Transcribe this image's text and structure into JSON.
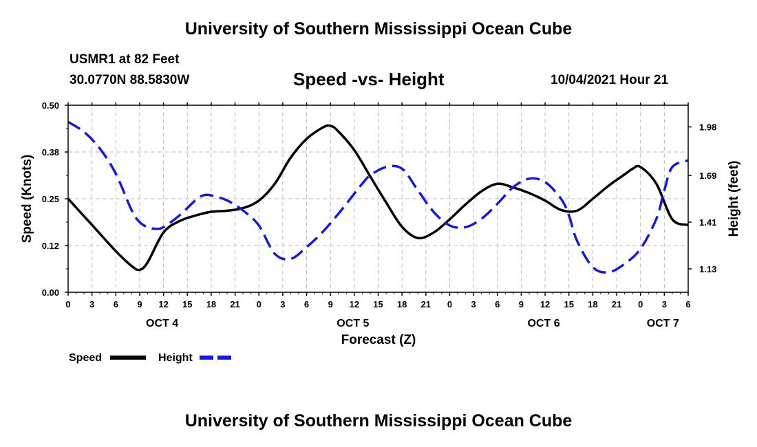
{
  "header": {
    "title": "University of Southern Mississippi Ocean Cube",
    "station": "USMR1 at 82 Feet",
    "coordinates": "30.0770N  88.5830W",
    "chart_title": "Speed -vs- Height",
    "datetime": "10/04/2021 Hour 21"
  },
  "footer": {
    "title": "University of Southern Mississippi Ocean Cube"
  },
  "colors": {
    "speed": "#000000",
    "height": "#1a1acc",
    "grid": "#bdbdbd"
  },
  "chart_data": {
    "type": "line",
    "title": "Speed -vs- Height",
    "xlabel": "Forecast (Z)",
    "ylabel": "Speed (Knots)",
    "y2label": "Height (feet)",
    "x_range_hours": [
      0,
      78
    ],
    "x_ticks": [
      {
        "h": 0,
        "label": "0"
      },
      {
        "h": 3,
        "label": "3"
      },
      {
        "h": 6,
        "label": "6"
      },
      {
        "h": 9,
        "label": "9"
      },
      {
        "h": 12,
        "label": "12"
      },
      {
        "h": 15,
        "label": "15"
      },
      {
        "h": 18,
        "label": "18"
      },
      {
        "h": 21,
        "label": "21"
      },
      {
        "h": 24,
        "label": "0"
      },
      {
        "h": 27,
        "label": "3"
      },
      {
        "h": 30,
        "label": "6"
      },
      {
        "h": 33,
        "label": "9"
      },
      {
        "h": 36,
        "label": "12"
      },
      {
        "h": 39,
        "label": "15"
      },
      {
        "h": 42,
        "label": "18"
      },
      {
        "h": 45,
        "label": "21"
      },
      {
        "h": 48,
        "label": "0"
      },
      {
        "h": 51,
        "label": "3"
      },
      {
        "h": 54,
        "label": "6"
      },
      {
        "h": 57,
        "label": "9"
      },
      {
        "h": 60,
        "label": "12"
      },
      {
        "h": 63,
        "label": "15"
      },
      {
        "h": 66,
        "label": "18"
      },
      {
        "h": 69,
        "label": "21"
      },
      {
        "h": 72,
        "label": "0"
      },
      {
        "h": 75,
        "label": "3"
      },
      {
        "h": 78,
        "label": "6"
      }
    ],
    "day_labels": [
      {
        "h": 12,
        "label": "OCT 4"
      },
      {
        "h": 36,
        "label": "OCT 5"
      },
      {
        "h": 60,
        "label": "OCT 6"
      },
      {
        "h": 75,
        "label": "OCT 7"
      }
    ],
    "ylim": [
      0,
      0.5
    ],
    "y_ticks": [
      {
        "v": 0.0,
        "label": "0.00"
      },
      {
        "v": 0.125,
        "label": "0.12"
      },
      {
        "v": 0.25,
        "label": "0.25"
      },
      {
        "v": 0.375,
        "label": "0.38"
      },
      {
        "v": 0.5,
        "label": "0.50"
      }
    ],
    "y2lim": [
      0.99,
      2.11
    ],
    "y2_ticks": [
      {
        "v": 1.13,
        "label": "1.13"
      },
      {
        "v": 1.41,
        "label": "1.41"
      },
      {
        "v": 1.69,
        "label": "1.69"
      },
      {
        "v": 1.98,
        "label": "1.98"
      }
    ],
    "series": [
      {
        "name": "Speed",
        "axis": "left",
        "style": "solid",
        "x": [
          0,
          3,
          6,
          8,
          9,
          10,
          12,
          14,
          16,
          18,
          20,
          22,
          24,
          26,
          28,
          30,
          32,
          33,
          34,
          36,
          38,
          40,
          42,
          44,
          46,
          48,
          50,
          52,
          54,
          56,
          58,
          60,
          62,
          64,
          66,
          68,
          70,
          71,
          72,
          74,
          76,
          78
        ],
        "values": [
          0.25,
          0.18,
          0.11,
          0.07,
          0.06,
          0.08,
          0.16,
          0.19,
          0.205,
          0.215,
          0.218,
          0.225,
          0.245,
          0.29,
          0.36,
          0.41,
          0.44,
          0.445,
          0.43,
          0.38,
          0.31,
          0.24,
          0.175,
          0.145,
          0.16,
          0.195,
          0.235,
          0.27,
          0.29,
          0.28,
          0.265,
          0.245,
          0.22,
          0.218,
          0.25,
          0.285,
          0.315,
          0.33,
          0.335,
          0.29,
          0.195,
          0.18
        ]
      },
      {
        "name": "Height",
        "axis": "right",
        "style": "dashed",
        "x": [
          0,
          2,
          4,
          6,
          8,
          9,
          10,
          11,
          12,
          14,
          16,
          17,
          18,
          20,
          22,
          24,
          26,
          28,
          30,
          32,
          34,
          36,
          37,
          38,
          40,
          42,
          44,
          46,
          48,
          50,
          52,
          54,
          56,
          58,
          60,
          62,
          63,
          64,
          66,
          68,
          70,
          72,
          74,
          75,
          76,
          78
        ],
        "values": [
          2.01,
          1.95,
          1.85,
          1.7,
          1.48,
          1.41,
          1.38,
          1.37,
          1.38,
          1.45,
          1.54,
          1.57,
          1.57,
          1.54,
          1.48,
          1.39,
          1.22,
          1.19,
          1.26,
          1.35,
          1.46,
          1.58,
          1.64,
          1.69,
          1.74,
          1.73,
          1.6,
          1.47,
          1.39,
          1.38,
          1.43,
          1.52,
          1.62,
          1.67,
          1.65,
          1.55,
          1.45,
          1.3,
          1.14,
          1.11,
          1.16,
          1.25,
          1.43,
          1.6,
          1.74,
          1.78
        ]
      }
    ],
    "legend": {
      "position": "bottom-left",
      "entries": [
        {
          "label": "Speed",
          "style": "solid"
        },
        {
          "label": "Height",
          "style": "dashed"
        }
      ]
    }
  }
}
